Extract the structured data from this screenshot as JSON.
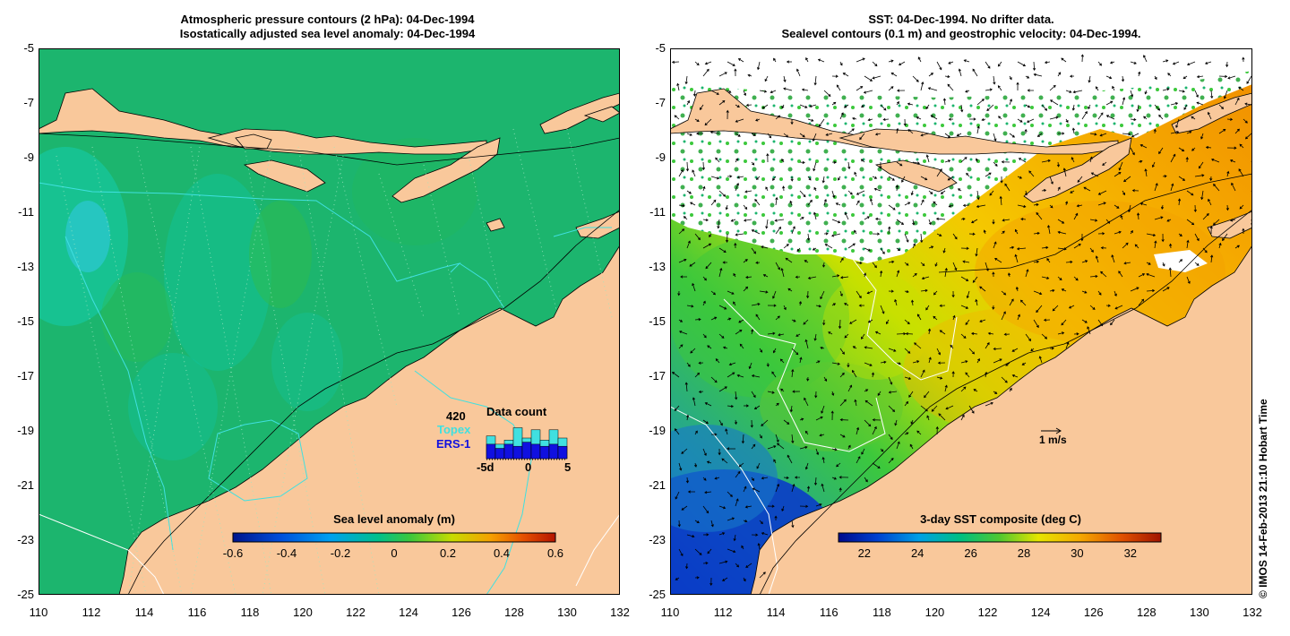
{
  "left_panel": {
    "title_line1": "Atmospheric pressure contours (2 hPa): 04-Dec-1994",
    "title_line2": "Isostatically adjusted sea level anomaly: 04-Dec-1994",
    "colorbar_label": "Sea level anomaly (m)",
    "colorbar_ticks": [
      "-0.6",
      "-0.4",
      "-0.2",
      "0",
      "0.2",
      "0.4",
      "0.6"
    ],
    "data_count": {
      "title": "Data count",
      "max_label": "420",
      "topex_label": "Topex",
      "ers_label": "ERS-1",
      "axis_labels": [
        "-5d",
        "0",
        "5"
      ],
      "topex_counts": [
        0.55,
        0.35,
        0.45,
        0.75,
        0.5,
        0.7,
        0.45,
        0.7,
        0.5
      ],
      "ers_counts": [
        0.35,
        0.25,
        0.35,
        0.3,
        0.4,
        0.35,
        0.3,
        0.35,
        0.3
      ]
    }
  },
  "right_panel": {
    "title_line1": "SST: 04-Dec-1994. No drifter data.",
    "title_line2": "Sealevel contours (0.1 m) and geostrophic velocity: 04-Dec-1994.",
    "colorbar_label": "3-day SST composite (deg C)",
    "colorbar_ticks": [
      "22",
      "24",
      "26",
      "28",
      "30",
      "32"
    ],
    "velocity_scale_label": "1 m/s"
  },
  "axes": {
    "lat_ticks": [
      "-5",
      "-7",
      "-9",
      "-11",
      "-13",
      "-15",
      "-17",
      "-19",
      "-21",
      "-23",
      "-25"
    ],
    "lon_ticks": [
      "110",
      "112",
      "114",
      "116",
      "118",
      "120",
      "122",
      "124",
      "126",
      "128",
      "130",
      "132"
    ]
  },
  "copyright": "© IMOS 14-Feb-2013 21:10 Hobart Time",
  "colors": {
    "land": "#f9c89b",
    "ocean_sla": "#1cb56e",
    "sst_warm": "#f5b400",
    "sst_cool": "#0a3cc8"
  }
}
